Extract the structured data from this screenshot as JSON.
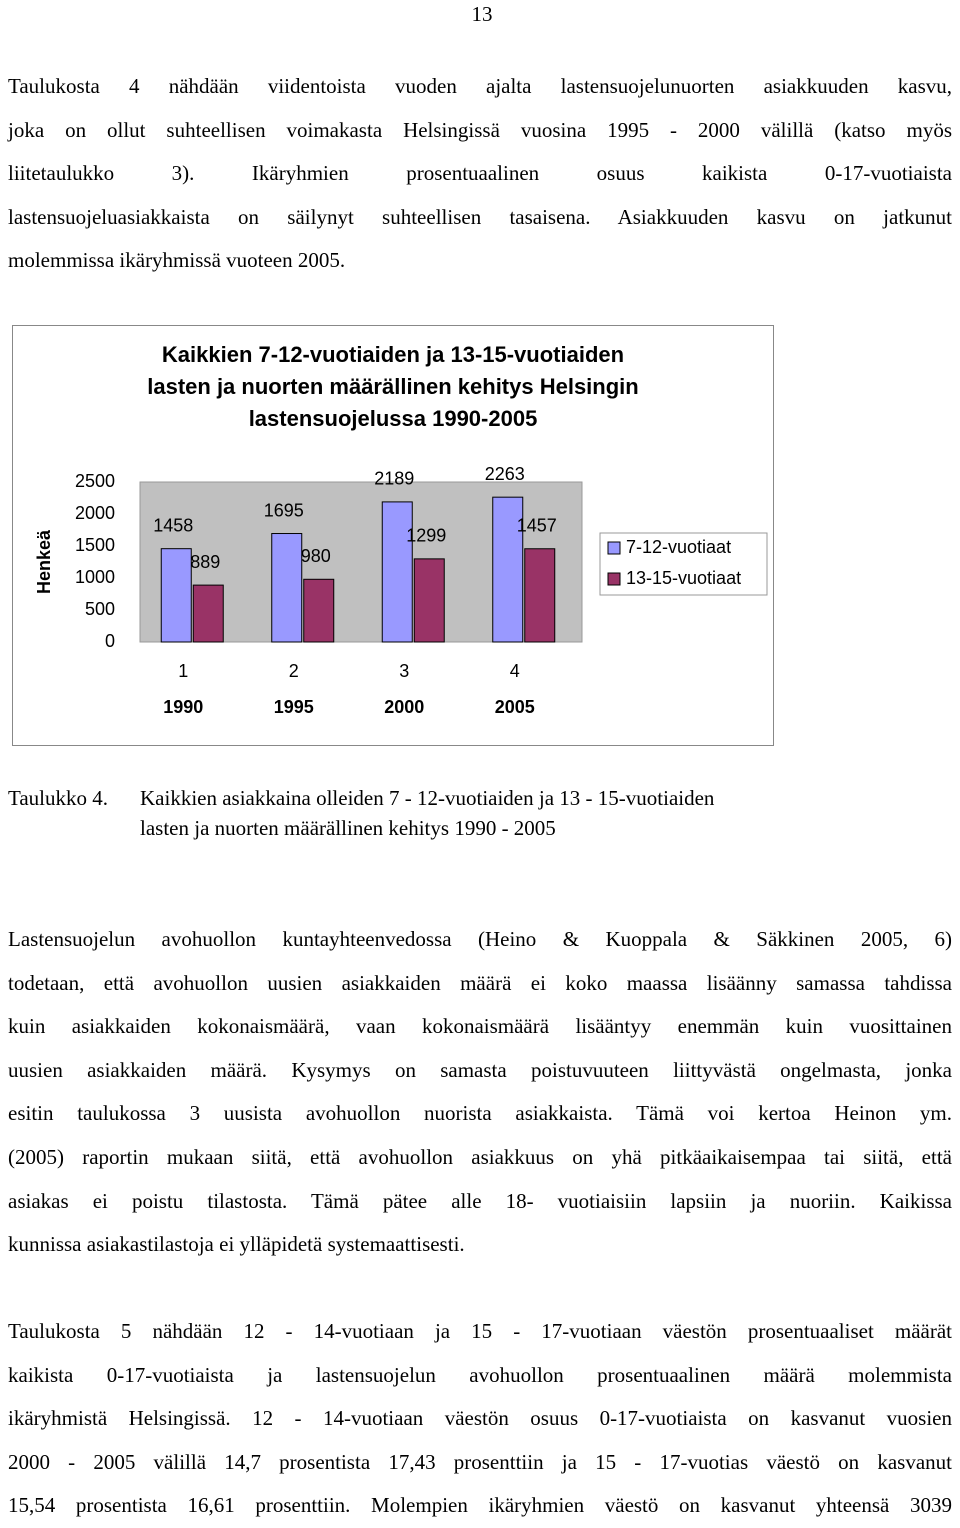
{
  "page_number": "13",
  "paragraphs": [
    {
      "lines": [
        "Taulukosta 4 nähdään viidentoista vuoden ajalta lastensuojelunuorten asiakkuuden kasvu,",
        "joka on ollut suhteellisen voimakasta Helsingissä vuosina 1995 - 2000 välillä (katso myös",
        "liitetaulukko 3). Ikäryhmien prosentuaalinen osuus kaikista 0-17-vuotiaista",
        "lastensuojeluasiakkaista on säilynyt suhteellisen tasaisena. Asiakkuuden kasvu on jatkunut",
        "molemmissa ikäryhmissä vuoteen 2005."
      ]
    },
    {
      "lines": [
        "Lastensuojelun avohuollon kuntayhteenvedossa (Heino & Kuoppala & Säkkinen 2005, 6)",
        "todetaan, että avohuollon uusien asiakkaiden määrä ei koko maassa lisäänny samassa tahdissa",
        "kuin asiakkaiden kokonaismäärä, vaan kokonaismäärä lisääntyy enemmän kuin vuosittainen",
        "uusien asiakkaiden määrä. Kysymys on samasta poistuvuuteen liittyvästä ongelmasta, jonka",
        "esitin taulukossa 3 uusista avohuollon nuorista asiakkaista. Tämä voi kertoa Heinon ym.",
        "(2005) raportin mukaan siitä, että avohuollon asiakkuus on yhä pitkäaikaisempaa tai siitä, että",
        "asiakas ei poistu tilastosta. Tämä pätee alle 18- vuotiaisiin lapsiin ja nuoriin. Kaikissa",
        "kunnissa asiakastilastoja ei ylläpidetä systemaattisesti."
      ]
    },
    {
      "lines": [
        "Taulukosta 5 nähdään 12 - 14-vuotiaan ja 15 - 17-vuotiaan väestön prosentuaaliset määrät",
        "kaikista 0-17-vuotiaista ja lastensuojelun avohuollon prosentuaalinen määrä molemmista",
        "ikäryhmistä Helsingissä. 12 - 14-vuotiaan väestön osuus 0-17-vuotiaista on kasvanut vuosien",
        "2000 - 2005 välillä 14,7 prosentista 17,43 prosenttiin ja 15 - 17-vuotias väestö on kasvanut",
        "15,54 prosentista 16,61 prosenttiin. Molempien ikäryhmien väestö on kasvanut yhteensä 3039"
      ]
    }
  ],
  "caption": {
    "label": "Taulukko 4.",
    "lines": [
      "Kaikkien asiakkaina olleiden 7 - 12-vuotiaiden ja 13 - 15-vuotiaiden",
      "lasten ja nuorten määrällinen kehitys 1990 - 2005"
    ]
  },
  "chart_data": {
    "type": "bar",
    "title": [
      "Kaikkien 7-12-vuotiaiden ja 13-15-vuotiaiden",
      "lasten ja nuorten määrällinen kehitys Helsingin",
      "lastensuojelussa 1990-2005"
    ],
    "ylabel": "Henkeä",
    "categories": [
      "1",
      "2",
      "3",
      "4"
    ],
    "category_years": [
      "1990",
      "1995",
      "2000",
      "2005"
    ],
    "series": [
      {
        "name": "7-12-vuotiaat",
        "color": "#9999ff",
        "values": [
          1458,
          1695,
          2189,
          2263
        ]
      },
      {
        "name": "13-15-vuotiaat",
        "color": "#993366",
        "values": [
          889,
          980,
          1299,
          1457
        ]
      }
    ],
    "ylim": [
      0,
      2500
    ],
    "yticks": [
      0,
      500,
      1000,
      1500,
      2000,
      2500
    ],
    "grid": false,
    "legend": "right",
    "data_labels": true
  }
}
